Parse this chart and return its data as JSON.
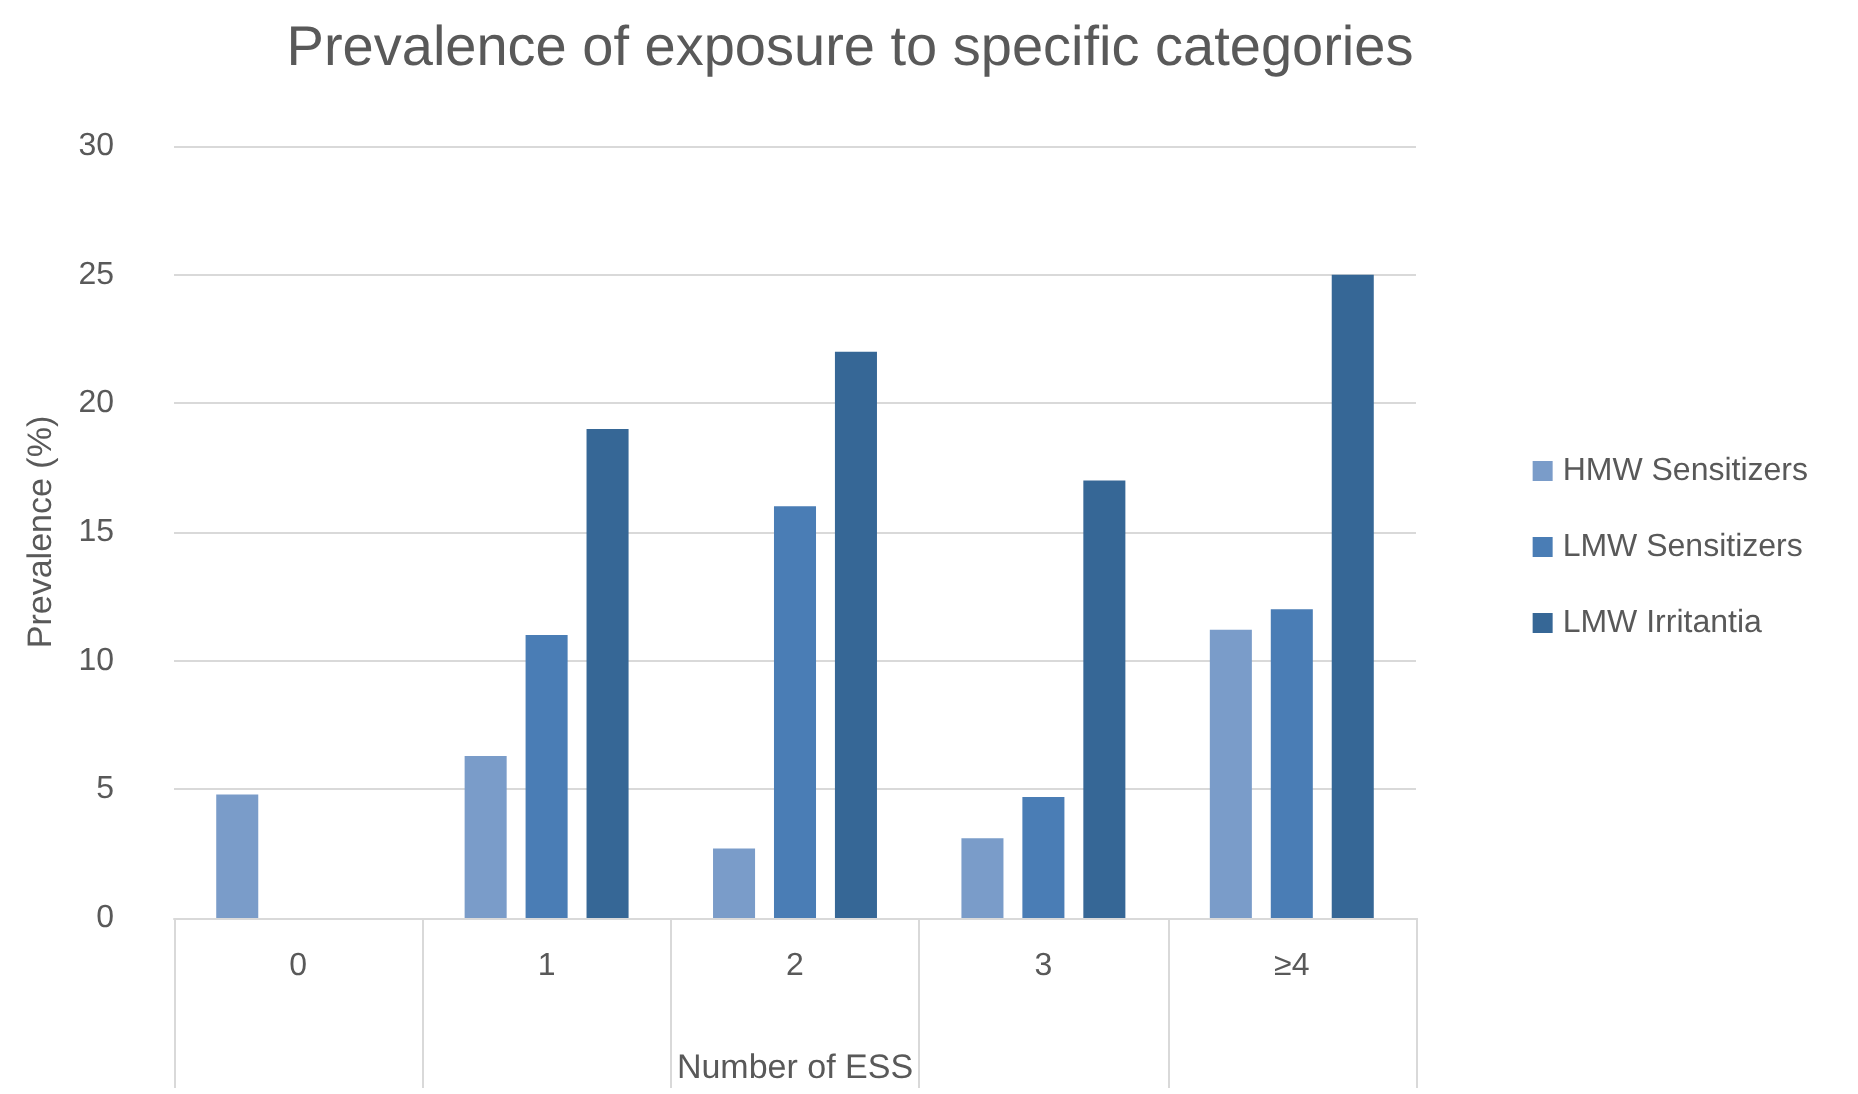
{
  "chart_data": {
    "type": "bar",
    "title": "Prevalence of exposure to specific categories",
    "xlabel": "Number of ESS",
    "ylabel": "Prevalence (%)",
    "categories": [
      "0",
      "1",
      "2",
      "3",
      "≥4"
    ],
    "series": [
      {
        "name": "HMW Sensitizers",
        "color": "#7a9cc9",
        "values": [
          4.8,
          6.3,
          2.7,
          3.1,
          11.2
        ]
      },
      {
        "name": "LMW Sensitizers",
        "color": "#4a7db5",
        "values": [
          0,
          11,
          16,
          4.7,
          12
        ]
      },
      {
        "name": "LMW Irritantia",
        "color": "#366796",
        "values": [
          0,
          19,
          22,
          17,
          25
        ]
      }
    ],
    "ylim": [
      0,
      30
    ],
    "yticks": [
      0,
      5,
      10,
      15,
      20,
      25,
      30
    ],
    "grid": "y",
    "legend": "right"
  }
}
